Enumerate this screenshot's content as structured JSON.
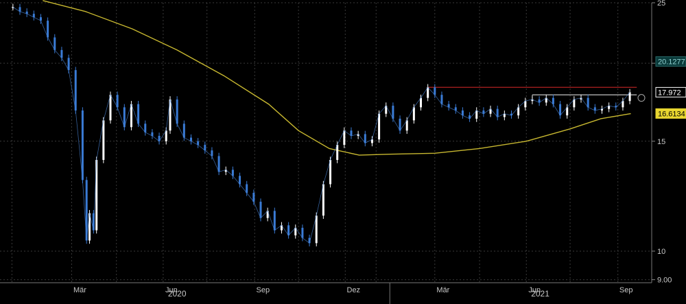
{
  "chart_data": {
    "type": "candlestick",
    "y_scale": "log",
    "ylim": [
      8.9,
      25
    ],
    "y_ticks": [
      {
        "value": 25,
        "label": "25"
      },
      {
        "value": 20,
        "label": "20"
      },
      {
        "value": 15,
        "label": "15"
      },
      {
        "value": 10,
        "label": "10"
      },
      {
        "value": 9,
        "label": "9.00"
      }
    ],
    "x_ticks": [
      "Mär",
      "Jun",
      "Sep",
      "Dez",
      "Mär",
      "Jun",
      "Sep"
    ],
    "years": [
      "2020",
      "2021"
    ],
    "price_series": {
      "color_up": "#ffffff",
      "color_down": "#3a7bd5",
      "points": [
        [
          "2020-01-02",
          24.6
        ],
        [
          "2020-01-09",
          24.2
        ],
        [
          "2020-01-16",
          24.0
        ],
        [
          "2020-01-23",
          23.7
        ],
        [
          "2020-01-30",
          23.4
        ],
        [
          "2020-02-06",
          22.0
        ],
        [
          "2020-02-13",
          21.0
        ],
        [
          "2020-02-20",
          20.4
        ],
        [
          "2020-02-27",
          19.5
        ],
        [
          "2020-03-05",
          16.8
        ],
        [
          "2020-03-12",
          13.0
        ],
        [
          "2020-03-16",
          10.4
        ],
        [
          "2020-03-19",
          11.5
        ],
        [
          "2020-03-23",
          10.8
        ],
        [
          "2020-03-26",
          14.0
        ],
        [
          "2020-04-02",
          16.2
        ],
        [
          "2020-04-09",
          17.8
        ],
        [
          "2020-04-16",
          17.0
        ],
        [
          "2020-04-23",
          15.8
        ],
        [
          "2020-04-30",
          17.2
        ],
        [
          "2020-05-07",
          16.0
        ],
        [
          "2020-05-14",
          15.5
        ],
        [
          "2020-05-21",
          15.3
        ],
        [
          "2020-05-28",
          15.0
        ],
        [
          "2020-06-04",
          15.6
        ],
        [
          "2020-06-08",
          17.5
        ],
        [
          "2020-06-15",
          16.0
        ],
        [
          "2020-06-22",
          15.2
        ],
        [
          "2020-06-29",
          15.0
        ],
        [
          "2020-07-06",
          14.8
        ],
        [
          "2020-07-13",
          14.5
        ],
        [
          "2020-07-20",
          14.2
        ],
        [
          "2020-07-27",
          13.4
        ],
        [
          "2020-08-03",
          13.5
        ],
        [
          "2020-08-10",
          13.2
        ],
        [
          "2020-08-17",
          12.8
        ],
        [
          "2020-08-24",
          12.4
        ],
        [
          "2020-08-31",
          12.0
        ],
        [
          "2020-09-07",
          11.3
        ],
        [
          "2020-09-14",
          11.6
        ],
        [
          "2020-09-21",
          10.8
        ],
        [
          "2020-09-28",
          11.0
        ],
        [
          "2020-10-05",
          10.6
        ],
        [
          "2020-10-12",
          10.9
        ],
        [
          "2020-10-19",
          10.5
        ],
        [
          "2020-10-26",
          10.3
        ],
        [
          "2020-11-02",
          11.4
        ],
        [
          "2020-11-09",
          12.8
        ],
        [
          "2020-11-16",
          14.0
        ],
        [
          "2020-11-23",
          14.8
        ],
        [
          "2020-11-30",
          15.6
        ],
        [
          "2020-12-07",
          15.3
        ],
        [
          "2020-12-14",
          15.4
        ],
        [
          "2020-12-21",
          14.9
        ],
        [
          "2020-12-28",
          15.1
        ],
        [
          "2021-01-04",
          16.6
        ],
        [
          "2021-01-11",
          17.1
        ],
        [
          "2021-01-18",
          16.3
        ],
        [
          "2021-01-25",
          15.6
        ],
        [
          "2021-02-01",
          16.2
        ],
        [
          "2021-02-08",
          17.0
        ],
        [
          "2021-02-15",
          17.6
        ],
        [
          "2021-02-22",
          18.3
        ],
        [
          "2021-03-01",
          17.8
        ],
        [
          "2021-03-08",
          17.2
        ],
        [
          "2021-03-15",
          17.0
        ],
        [
          "2021-03-22",
          16.8
        ],
        [
          "2021-03-29",
          16.5
        ],
        [
          "2021-04-05",
          16.3
        ],
        [
          "2021-04-12",
          16.8
        ],
        [
          "2021-04-19",
          16.6
        ],
        [
          "2021-04-26",
          16.9
        ],
        [
          "2021-05-03",
          16.4
        ],
        [
          "2021-05-10",
          16.6
        ],
        [
          "2021-05-17",
          16.5
        ],
        [
          "2021-05-24",
          17.0
        ],
        [
          "2021-05-31",
          17.4
        ],
        [
          "2021-06-07",
          17.5
        ],
        [
          "2021-06-14",
          17.3
        ],
        [
          "2021-06-21",
          17.6
        ],
        [
          "2021-06-28",
          17.2
        ],
        [
          "2021-07-05",
          16.5
        ],
        [
          "2021-07-12",
          17.0
        ],
        [
          "2021-07-19",
          17.5
        ],
        [
          "2021-07-26",
          17.6
        ],
        [
          "2021-08-02",
          17.0
        ],
        [
          "2021-08-09",
          16.8
        ],
        [
          "2021-08-16",
          16.9
        ],
        [
          "2021-08-23",
          17.1
        ],
        [
          "2021-08-30",
          17.0
        ],
        [
          "2021-09-06",
          17.4
        ],
        [
          "2021-09-13",
          17.97
        ]
      ]
    },
    "moving_average": {
      "color": "#c8b830",
      "points": [
        [
          "2020-02-01",
          25.2
        ],
        [
          "2020-03-15",
          24.2
        ],
        [
          "2020-05-01",
          22.7
        ],
        [
          "2020-06-15",
          21.0
        ],
        [
          "2020-08-01",
          19.1
        ],
        [
          "2020-09-15",
          17.2
        ],
        [
          "2020-10-15",
          15.6
        ],
        [
          "2020-11-15",
          14.6
        ],
        [
          "2020-12-15",
          14.25
        ],
        [
          "2021-01-15",
          14.3
        ],
        [
          "2021-03-01",
          14.35
        ],
        [
          "2021-04-15",
          14.6
        ],
        [
          "2021-06-01",
          15.0
        ],
        [
          "2021-07-15",
          15.7
        ],
        [
          "2021-08-15",
          16.3
        ],
        [
          "2021-09-14",
          16.61
        ]
      ]
    },
    "resistance_levels": [
      {
        "from": "2021-02-22",
        "to": "2021-09-20",
        "value": 18.3,
        "color": "#b02020"
      },
      {
        "from": "2021-06-07",
        "to": "2021-09-20",
        "value": 17.8,
        "color": "#d8d8d8"
      }
    ],
    "price_tags": [
      {
        "label": "20.1277",
        "value": 20.1277,
        "bg": "#0a3a3a",
        "fg": "#8fd0d0",
        "border": "#2a6a6a"
      },
      {
        "label": "17.972",
        "value": 17.972,
        "bg": "#000000",
        "fg": "#ffffff",
        "border": "#ffffff"
      },
      {
        "label": "16.6134",
        "value": 16.6134,
        "bg": "#e8d630",
        "fg": "#000000",
        "border": "#e8d630"
      }
    ]
  }
}
